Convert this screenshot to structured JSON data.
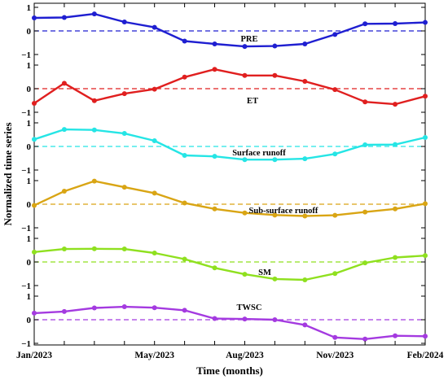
{
  "chart_data": {
    "type": "line",
    "xlabel": "Time (months)",
    "ylabel": "Normalized time series",
    "x_tick_labels": [
      "Jan/2023",
      "May/2023",
      "Aug/2023",
      "Nov/2023",
      "Feb/2024"
    ],
    "x_tick_label_indices": [
      0,
      4,
      7,
      10,
      13
    ],
    "panel_ylim": [
      -1,
      1
    ],
    "panel_yticks": [
      1,
      0,
      -1
    ],
    "panel_ytick_labels": [
      "1",
      "0",
      "−1"
    ],
    "series": [
      {
        "name": "PRE",
        "color": "#1f1fd1",
        "values": [
          0.55,
          0.57,
          0.72,
          0.38,
          0.15,
          -0.43,
          -0.55,
          -0.66,
          -0.64,
          -0.55,
          -0.15,
          0.3,
          0.31,
          0.36
        ]
      },
      {
        "name": "ET",
        "color": "#e01f1f",
        "values": [
          -0.62,
          0.23,
          -0.51,
          -0.21,
          -0.02,
          0.49,
          0.82,
          0.56,
          0.56,
          0.31,
          -0.04,
          -0.56,
          -0.66,
          -0.32
        ]
      },
      {
        "name": "Surface runoff",
        "color": "#25e5e5",
        "values": [
          0.3,
          0.72,
          0.7,
          0.55,
          0.24,
          -0.38,
          -0.42,
          -0.56,
          -0.56,
          -0.52,
          -0.32,
          0.07,
          0.08,
          0.38
        ]
      },
      {
        "name": "Sub-surface runoff",
        "color": "#d9a514",
        "values": [
          -0.05,
          0.55,
          0.98,
          0.72,
          0.47,
          0.05,
          -0.2,
          -0.37,
          -0.46,
          -0.5,
          -0.47,
          -0.33,
          -0.2,
          0.02
        ]
      },
      {
        "name": "SM",
        "color": "#8fe01f",
        "values": [
          0.42,
          0.55,
          0.56,
          0.55,
          0.38,
          0.12,
          -0.25,
          -0.52,
          -0.72,
          -0.76,
          -0.49,
          -0.04,
          0.19,
          0.27
        ]
      },
      {
        "name": "TWSC",
        "color": "#a43ae0",
        "values": [
          0.28,
          0.35,
          0.5,
          0.55,
          0.51,
          0.4,
          0.05,
          0.03,
          0.0,
          -0.22,
          -0.75,
          -0.82,
          -0.68,
          -0.7
        ]
      }
    ],
    "grid": false,
    "legend": "none"
  }
}
